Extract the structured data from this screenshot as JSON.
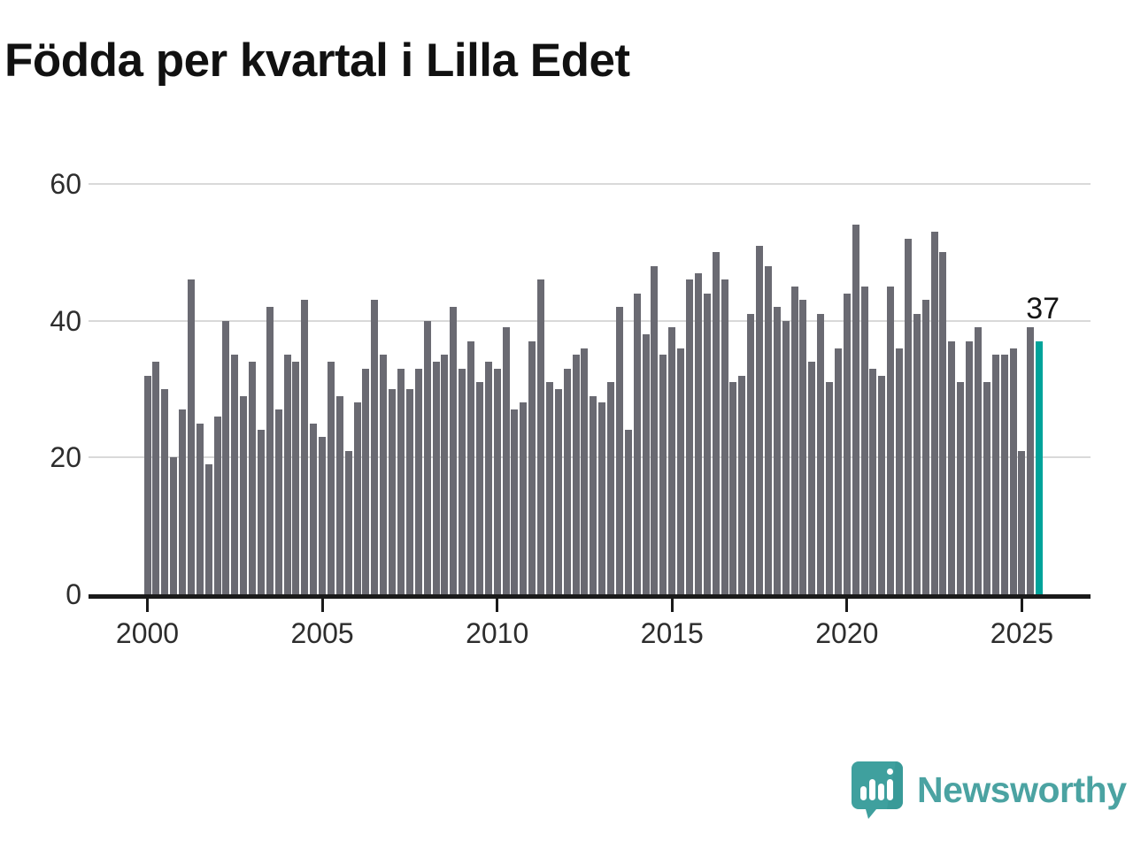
{
  "title": "Födda per kvartal i Lilla Edet",
  "annotation": {
    "label": "37"
  },
  "footer": {
    "brand": "Newsworthy"
  },
  "colors": {
    "bar": "#6a6a72",
    "highlight": "#00a39a",
    "grid": "#d9d9d9",
    "axis": "#1a1a1a",
    "title_text": "#111111",
    "tick_text": "#2d2d2d",
    "logo_bubble": "#3fa09e",
    "logo_text": "#4ba3a2"
  },
  "chart_data": {
    "type": "bar",
    "title": "Födda per kvartal i Lilla Edet",
    "frequency": "quarterly",
    "x_start": "2000-Q1",
    "x_end": "2025-Q3",
    "ylim": [
      0,
      60
    ],
    "grid": "horizontal",
    "y_ticks": [
      0,
      20,
      40,
      60
    ],
    "x_ticks": [
      2000,
      2005,
      2010,
      2015,
      2020,
      2025
    ],
    "values": [
      32,
      34,
      30,
      20,
      27,
      46,
      25,
      19,
      26,
      40,
      35,
      29,
      34,
      24,
      42,
      27,
      35,
      34,
      43,
      25,
      23,
      34,
      29,
      21,
      28,
      33,
      43,
      35,
      30,
      33,
      30,
      33,
      40,
      34,
      35,
      42,
      33,
      37,
      31,
      34,
      33,
      39,
      27,
      28,
      37,
      46,
      31,
      30,
      33,
      35,
      36,
      29,
      28,
      31,
      42,
      24,
      44,
      38,
      48,
      35,
      39,
      36,
      46,
      47,
      44,
      50,
      46,
      31,
      32,
      41,
      51,
      48,
      42,
      40,
      45,
      43,
      34,
      41,
      31,
      36,
      44,
      54,
      45,
      33,
      32,
      45,
      36,
      52,
      41,
      43,
      53,
      50,
      37,
      31,
      37,
      39,
      31,
      35,
      35,
      36,
      21,
      39,
      37
    ],
    "highlight_index": 102,
    "highlight_value": 37,
    "annotations": [
      {
        "index": 102,
        "text": "37"
      }
    ]
  }
}
